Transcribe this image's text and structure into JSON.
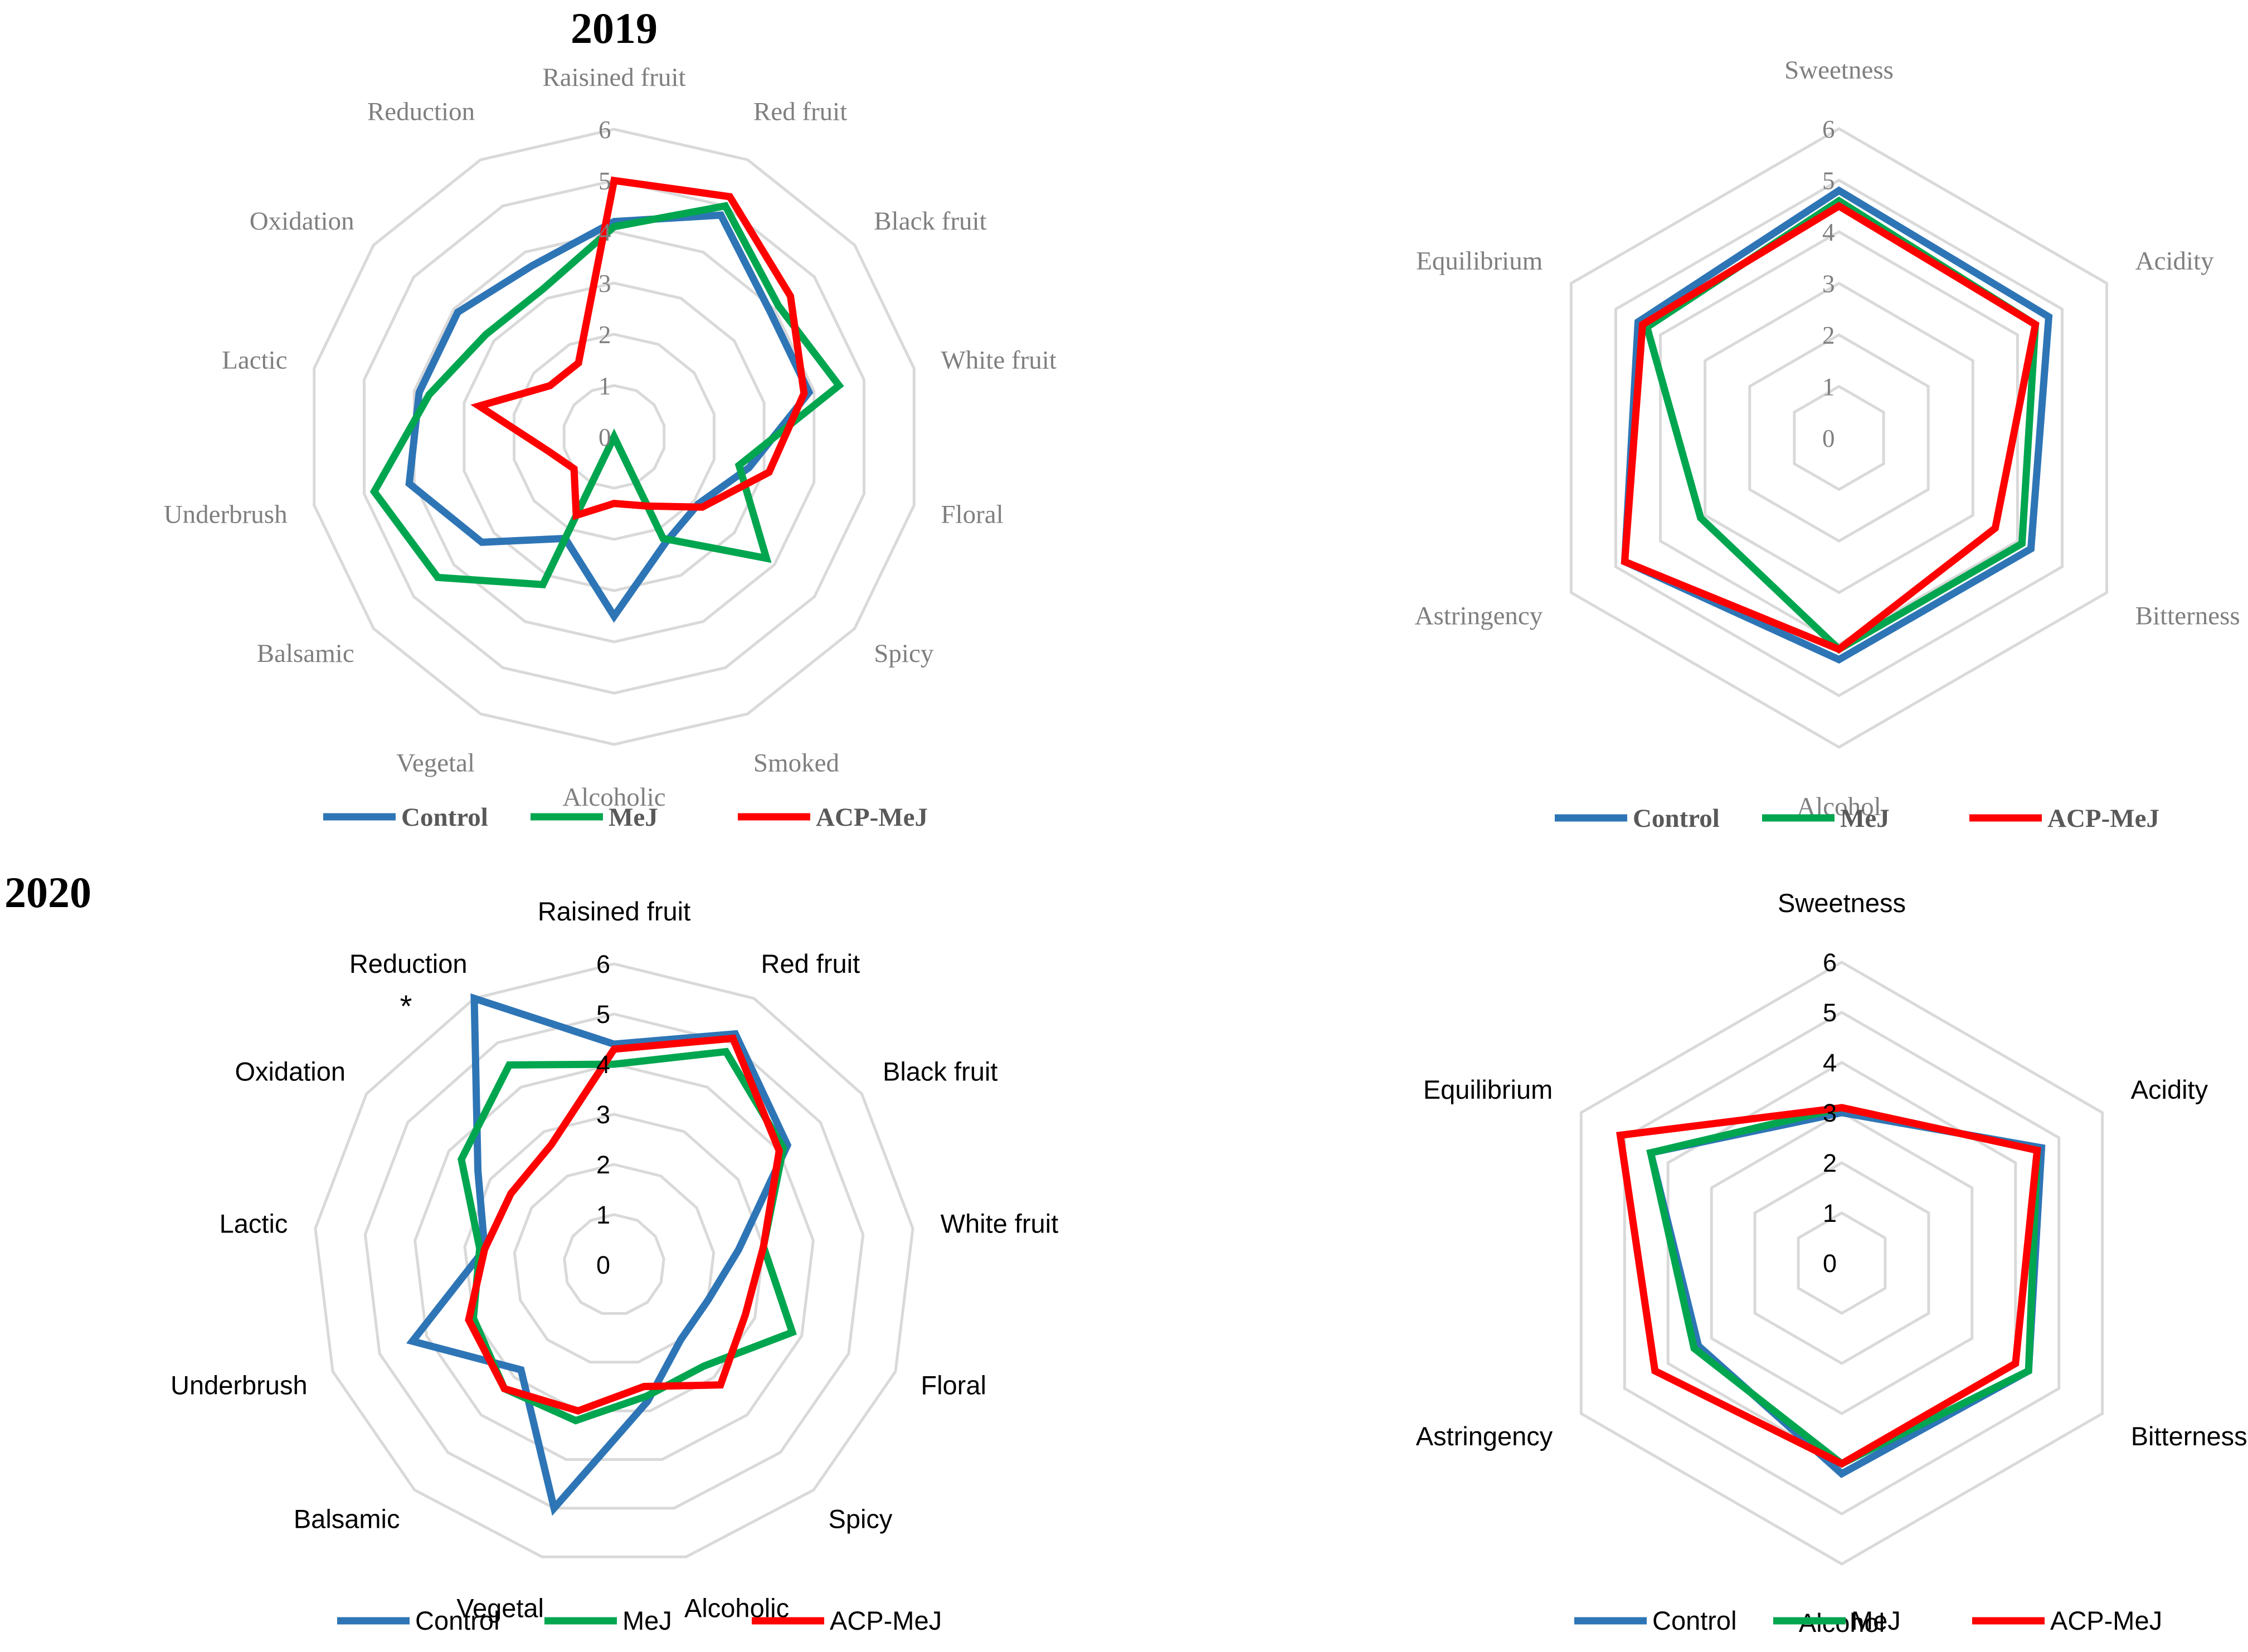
{
  "titles": {
    "year_2019": "2019",
    "year_2020": "2020"
  },
  "colors": {
    "Control": "#2e75b6",
    "MeJ": "#00a64f",
    "ACP-MeJ": "#ff0000"
  },
  "series_names": [
    "Control",
    "MeJ",
    "ACP-MeJ"
  ],
  "chart_data": [
    {
      "type": "radar",
      "year": "2019",
      "panel": "aroma",
      "categories": [
        "Raisined fruit",
        "Red fruit",
        "Black fruit",
        "White fruit",
        "Floral",
        "Spicy",
        "Smoked",
        "Alcoholic",
        "Vegetal",
        "Balsamic",
        "Underbrush",
        "Lactic",
        "Oxidation",
        "Reduction"
      ],
      "ticks": [
        "0",
        "1",
        "2",
        "3",
        "4",
        "5",
        "6"
      ],
      "rlim": [
        0,
        6
      ],
      "grid": true,
      "legend": "bottom",
      "series": [
        {
          "name": "Control",
          "values": [
            4.2,
            4.8,
            3.9,
            3.9,
            2.7,
            2.1,
            2.3,
            3.5,
            2.2,
            3.3,
            4.1,
            3.9,
            3.9,
            3.7
          ]
        },
        {
          "name": "MeJ",
          "values": [
            4.1,
            5.0,
            4.1,
            4.5,
            2.5,
            3.8,
            2.2,
            0.0,
            3.2,
            4.4,
            4.8,
            3.7,
            3.2,
            3.2
          ]
        },
        {
          "name": "ACP-MeJ",
          "values": [
            5.0,
            5.2,
            4.4,
            3.8,
            3.1,
            2.2,
            1.5,
            1.3,
            1.7,
            1.0,
            1.3,
            2.7,
            1.6,
            1.6
          ]
        }
      ]
    },
    {
      "type": "radar",
      "year": "2019",
      "panel": "taste",
      "categories": [
        "Sweetness",
        "Acidity",
        "Bitterness",
        "Alcohol",
        "Astringency",
        "Equilibrium"
      ],
      "ticks": [
        "0",
        "1",
        "2",
        "3",
        "4",
        "5",
        "6"
      ],
      "rlim": [
        0,
        6
      ],
      "grid": true,
      "legend": "bottom",
      "series": [
        {
          "name": "Control",
          "values": [
            4.8,
            4.7,
            4.3,
            4.3,
            4.8,
            4.5
          ]
        },
        {
          "name": "MeJ",
          "values": [
            4.6,
            4.4,
            4.1,
            4.1,
            3.1,
            4.3
          ]
        },
        {
          "name": "ACP-MeJ",
          "values": [
            4.5,
            4.4,
            3.5,
            4.1,
            4.8,
            4.4
          ]
        }
      ]
    },
    {
      "type": "radar",
      "year": "2020",
      "panel": "aroma",
      "categories": [
        "Raisined fruit",
        "Red fruit",
        "Black fruit",
        "White fruit",
        "Floral",
        "Spicy",
        "Alcoholic",
        "Vegetal",
        "Balsamic",
        "Underbrush",
        "Lactic",
        "Oxidation",
        "Reduction"
      ],
      "ticks": [
        "0",
        "1",
        "2",
        "3",
        "4",
        "5",
        "6"
      ],
      "rlim": [
        0,
        6
      ],
      "grid": true,
      "legend": "bottom",
      "annotations": [
        {
          "text": "*",
          "category": "Reduction"
        }
      ],
      "series": [
        {
          "name": "Control",
          "values": [
            4.4,
            5.2,
            4.2,
            2.5,
            2.0,
            2.0,
            2.8,
            5.0,
            2.8,
            4.3,
            2.6,
            3.3,
            6.0
          ]
        },
        {
          "name": "MeJ",
          "values": [
            4.0,
            4.8,
            4.1,
            3.0,
            3.8,
            2.7,
            2.7,
            3.2,
            3.3,
            3.0,
            2.7,
            3.7,
            4.5
          ]
        },
        {
          "name": "ACP-MeJ",
          "values": [
            4.3,
            5.1,
            4.0,
            3.0,
            2.8,
            3.2,
            2.5,
            3.0,
            3.3,
            3.1,
            2.6,
            2.5,
            2.7
          ]
        }
      ]
    },
    {
      "type": "radar",
      "year": "2020",
      "panel": "taste",
      "categories": [
        "Sweetness",
        "Acidity",
        "Bitterness",
        "Alcohol",
        "Astringency",
        "Equilibrium"
      ],
      "ticks": [
        "0",
        "1",
        "2",
        "3",
        "4",
        "5",
        "6"
      ],
      "rlim": [
        0,
        6
      ],
      "grid": true,
      "legend": "bottom",
      "series": [
        {
          "name": "Control",
          "values": [
            3.0,
            4.6,
            4.3,
            4.2,
            3.3,
            4.4
          ]
        },
        {
          "name": "MeJ",
          "values": [
            3.1,
            4.5,
            4.3,
            4.0,
            3.4,
            4.4
          ]
        },
        {
          "name": "ACP-MeJ",
          "values": [
            3.1,
            4.5,
            4.0,
            4.0,
            4.3,
            5.1
          ]
        }
      ]
    }
  ]
}
